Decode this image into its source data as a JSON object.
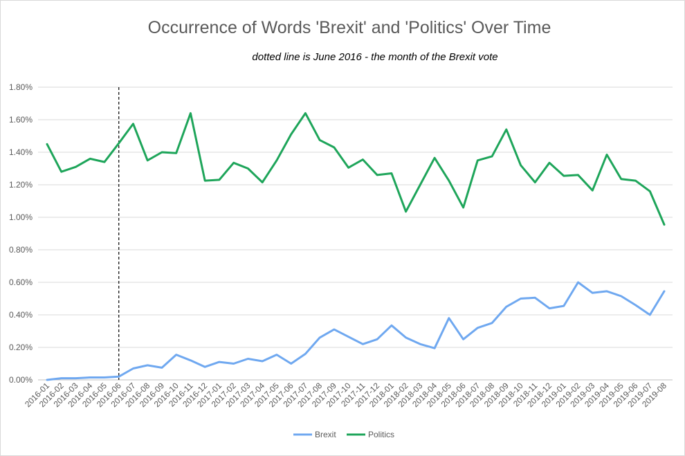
{
  "chart_data": {
    "type": "line",
    "title": "Occurrence of Words 'Brexit' and 'Politics' Over Time",
    "subtitle": "dotted line is June 2016 - the month of the Brexit vote",
    "xlabel": "",
    "ylabel": "",
    "ylim": [
      0,
      1.8
    ],
    "y_tick_labels": [
      "0.00%",
      "0.20%",
      "0.40%",
      "0.60%",
      "0.80%",
      "1.00%",
      "1.20%",
      "1.40%",
      "1.60%",
      "1.80%"
    ],
    "y_tick_values": [
      0,
      0.2,
      0.4,
      0.6,
      0.8,
      1.0,
      1.2,
      1.4,
      1.6,
      1.8
    ],
    "grid": "horizontal",
    "legend_position": "bottom",
    "vertical_marker": {
      "category": "2016-06",
      "style": "dotted",
      "color": "#000000"
    },
    "categories": [
      "2016-01",
      "2016-02",
      "2016-03",
      "2016-04",
      "2016-05",
      "2016-06",
      "2016-07",
      "2016-08",
      "2016-09",
      "2016-10",
      "2016-11",
      "2016-12",
      "2017-01",
      "2017-02",
      "2017-03",
      "2017-04",
      "2017-05",
      "2017-06",
      "2017-07",
      "2017-08",
      "2017-09",
      "2017-10",
      "2017-11",
      "2017-12",
      "2018-01",
      "2018-02",
      "2018-03",
      "2018-04",
      "2018-05",
      "2018-06",
      "2018-07",
      "2018-08",
      "2018-09",
      "2018-10",
      "2018-11",
      "2018-12",
      "2019-01",
      "2019-02",
      "2019-03",
      "2019-04",
      "2019-05",
      "2019-06",
      "2019-07",
      "2019-08"
    ],
    "series": [
      {
        "name": "Brexit",
        "color": "#6fa8f0",
        "values": [
          0.0,
          0.01,
          0.01,
          0.015,
          0.015,
          0.02,
          0.07,
          0.09,
          0.075,
          0.155,
          0.12,
          0.08,
          0.11,
          0.1,
          0.13,
          0.115,
          0.155,
          0.1,
          0.16,
          0.26,
          0.31,
          0.265,
          0.22,
          0.25,
          0.335,
          0.26,
          0.22,
          0.195,
          0.38,
          0.25,
          0.32,
          0.35,
          0.45,
          0.5,
          0.505,
          0.44,
          0.455,
          0.6,
          0.535,
          0.545,
          0.515,
          0.46,
          0.4,
          0.545
        ]
      },
      {
        "name": "Politics",
        "color": "#1ea55a",
        "values": [
          1.45,
          1.28,
          1.31,
          1.36,
          1.34,
          1.455,
          1.575,
          1.35,
          1.4,
          1.395,
          1.64,
          1.225,
          1.23,
          1.335,
          1.3,
          1.215,
          1.35,
          1.51,
          1.64,
          1.475,
          1.43,
          1.305,
          1.355,
          1.26,
          1.27,
          1.035,
          1.2,
          1.365,
          1.225,
          1.06,
          1.35,
          1.375,
          1.54,
          1.32,
          1.215,
          1.335,
          1.255,
          1.26,
          1.165,
          1.385,
          1.235,
          1.225,
          1.16,
          0.955
        ]
      }
    ]
  }
}
